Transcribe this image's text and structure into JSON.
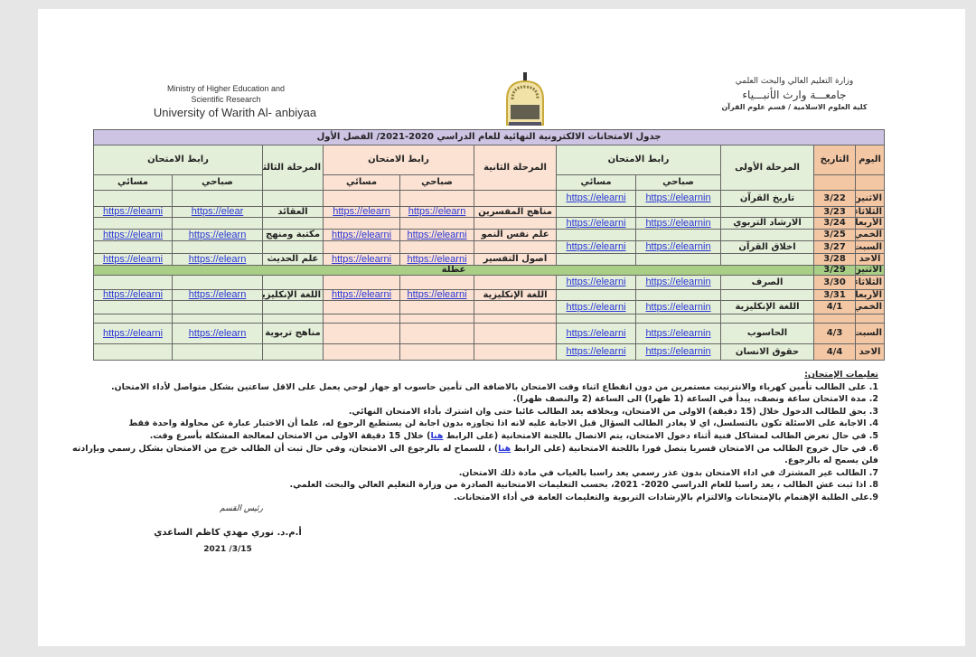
{
  "header": {
    "english": [
      "Ministry of Higher Education and",
      "Scientific Research",
      "University of Warith Al- anbiyaa"
    ],
    "arabic": [
      "وزارة التعليم العالي والبحث العلمي",
      "جامعـــة وارث الأنبـــياء",
      "كلية العلوم الاسلامية / قسم علوم القرآن"
    ],
    "logo_text": "جامعة وارث الأنبياء"
  },
  "table": {
    "title": "جدول الامتحانات الالكترونية النهائية للعام الدراسي 2020-2021/ الفصل الأول",
    "col_day": "اليوم",
    "col_date": "التاريخ",
    "stage1": "المرحلة الأولى",
    "stage2": "المرحلة الثانية",
    "stage3": "المرحلة الثالثة",
    "link_header": "رابط الامتحان",
    "morning": "صباحي",
    "evening": "مسائي",
    "holiday_label": "عطلة",
    "rows": [
      {
        "day": "الاثنين",
        "date": "3/22",
        "s1": "تاريخ القرآن",
        "s1m": "https://elearnin",
        "s1e": "https://elearni",
        "s2": "",
        "s2m": "",
        "s2e": "",
        "s3": "",
        "s3m": "",
        "s3e": ""
      },
      {
        "day": "الثلاثاء",
        "date": "3/23",
        "s1": "",
        "s1m": "",
        "s1e": "",
        "s2": "مناهج المفسرين",
        "s2m": "https://elearn",
        "s2e": "https://elearn",
        "s3": "العقائد",
        "s3m": "https://elear",
        "s3e": "https://elearni"
      },
      {
        "day": "الأربعاء",
        "date": "3/24",
        "s1": "الارشاد التربوي",
        "s1m": "https://elearnin",
        "s1e": "https://elearni",
        "s2": "",
        "s2m": "",
        "s2e": "",
        "s3": "",
        "s3m": "",
        "s3e": ""
      },
      {
        "day": "الخمي",
        "date": "3/25",
        "s1": "",
        "s1m": "",
        "s1e": "",
        "s2": "علم نفس النمو",
        "s2m": "https://elearni",
        "s2e": "https://elearni",
        "s3": "مكتبة ومنهج",
        "s3m": "https://elearn",
        "s3e": "https://elearni"
      },
      {
        "day": "السبت",
        "date": "3/27",
        "s1": "اخلاق القرآن",
        "s1m": "https://elearnin",
        "s1e": "https://elearni",
        "s2": "",
        "s2m": "",
        "s2e": "",
        "s3": "",
        "s3m": "",
        "s3e": ""
      },
      {
        "day": "الاحد",
        "date": "3/28",
        "s1": "",
        "s1m": "",
        "s1e": "",
        "s2": "أصول التفسير",
        "s2m": "https://elearni",
        "s2e": "https://elearni",
        "s3": "علم الحديث",
        "s3m": "https://elearn",
        "s3e": "https://elearni"
      },
      {
        "day": "الاثنين",
        "date": "3/29",
        "holiday": true
      },
      {
        "day": "الثلاثاء",
        "date": "3/30",
        "s1": "الصرف",
        "s1m": "https://elearnin",
        "s1e": "https://elearni",
        "s2": "",
        "s2m": "",
        "s2e": "",
        "s3": "",
        "s3m": "",
        "s3e": ""
      },
      {
        "day": "الأربعاء",
        "date": "3/31",
        "s1": "",
        "s1m": "",
        "s1e": "",
        "s2": "اللغة الإنكليزية",
        "s2m": "https://elearni",
        "s2e": "https://elearni",
        "s3": "اللغة الإنكليزية",
        "s3m": "https://elearn",
        "s3e": "https://elearni"
      },
      {
        "day": "الخمي",
        "date": "4/1",
        "s1": "اللغة الإنكليزية",
        "s1m": "https://elearnin",
        "s1e": "https://elearni",
        "s2": "",
        "s2m": "",
        "s2e": "",
        "s3": "",
        "s3m": "",
        "s3e": ""
      },
      {
        "day": "",
        "date": "",
        "s1": "",
        "s1m": "",
        "s1e": "",
        "s2": "",
        "s2m": "",
        "s2e": "",
        "s3": "",
        "s3m": "",
        "s3e": ""
      },
      {
        "day": "السبت",
        "date": "4/3",
        "s1": "الحاسوب",
        "s1m": "https://elearnin",
        "s1e": "https://elearni",
        "s2": "",
        "s2m": "",
        "s2e": "",
        "s3": "مناهج تربوية",
        "s3m": "https://elearn",
        "s3e": "https://elearni"
      },
      {
        "day": "الاحد",
        "date": "4/4",
        "s1": "حقوق الانسان",
        "s1m": "https://elearnin",
        "s1e": "https://elearni",
        "s2": "",
        "s2m": "",
        "s2e": "",
        "s3": "",
        "s3m": "",
        "s3e": ""
      }
    ]
  },
  "instructions": {
    "title": "تعليمات الإمتحان:",
    "items": [
      {
        "text": "1. على الطالب تأمين كهرباء والانترنيت مستمرين من دون انقطاع اثناء وقت الامتحان بالاضافة الى تأمين حاسوب او جهاز لوحي يعمل على الاقل ساعتين بشكل متواصل لأداء الامتحان."
      },
      {
        "text": "2. مدة الامتحان ساعة ونصف، يبدأ في الساعة (1 ظهرا) الى الساعة (2 والنصف ظهرا)."
      },
      {
        "text": "3. يحق للطالب الدخول خلال (15 دقيقة) الاولى من الامتحان، وبخلافه يعد الطالب غائبا حتى وان اشترك بأداء الامتحان النهائي."
      },
      {
        "text": "4. الاجابة على الاسئلة تكون بالتسلسل، اي لا يغادر الطالب السؤال قبل الاجابة عليه لانه اذا تجاوزه بدون اجابة لن يستطيع الرجوع له، علما أن الاختبار عبارة عن محاولة واحدة فقط"
      },
      {
        "text": "5. في حال تعرض الطالب لمشاكل فنية أثناء دخول الامتحان، يتم الاتصال باللجنة الامتحانية (على الرابط ",
        "link": "هنا",
        "after": ") خلال 15 دقيقة الاولى من الامتحان لمعالجة المشكلة بأسرع وقت."
      },
      {
        "text": "6. في حال خروج الطالب من الامتحان قسريا يتصل فورا باللجنة الامتحانية (على الرابط ",
        "link": "هنا",
        "after": ") ، للسماح له بالرجوع الى الامتحان، وفي حال ثبت أن الطالب خرج من الامتحان بشكل رسمي وبإرادته فلن يسمح له بالرجوع."
      },
      {
        "text": "7. الطالب غير المشترك في اداء الامتحان بدون عذر رسمي يعد راسبا بالغياب في مادة ذلك الامتحان."
      },
      {
        "text": "8. اذا ثبت غش الطالب ، يعد راسبا للعام الدراسي 2020- 2021، بحسب التعليمات الامتحانية الصادرة من وزارة التعليم العالي والبحث العلمي."
      },
      {
        "text": "9.على الطلبة الإهتمام بالإمتحانات والالتزام بالإرشادات التربوية والتعليمات العامة في أداء الامتحانات."
      }
    ]
  },
  "signature": {
    "role": "رئيس القسم",
    "name": "أ.م.د. نوري مهدي كاظم الساعدي",
    "date": "2021 /3/15"
  },
  "colors": {
    "day_col": "#f4c7a4",
    "stage1": "#e4efd9",
    "stage2": "#fbe2d2",
    "title": "#cdc3e3",
    "holiday": "#a9cf86",
    "link": "#2a36d6"
  }
}
